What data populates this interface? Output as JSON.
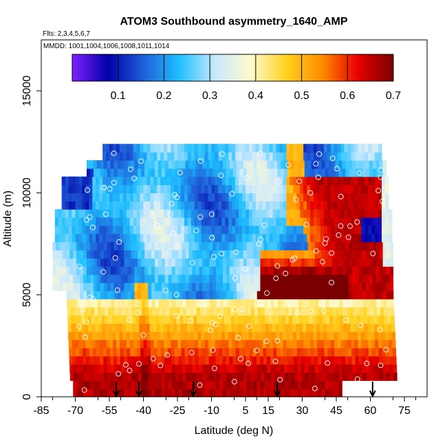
{
  "chart_data": {
    "type": "heatmap",
    "title": "ATOM3 Southbound asymmetry_1640_AMP",
    "subtitle_flights": "Flts: 2,3,4,5,6,7",
    "subtitle_dates": "MMDD: 1001,1004,1006,1008,1011,1014",
    "xlabel": "Latitude (deg N)",
    "ylabel": "Altitude (m)",
    "xlim": [
      -85,
      85
    ],
    "ylim": [
      0,
      17500
    ],
    "x_ticks": [
      -85,
      -70,
      -55,
      -40,
      -25,
      -10,
      5,
      15,
      30,
      45,
      60,
      75
    ],
    "y_ticks": [
      0,
      5000,
      10000,
      15000
    ],
    "colorbar": {
      "range": [
        0,
        0.7
      ],
      "ticks": [
        0.1,
        0.2,
        0.3,
        0.4,
        0.5,
        0.6,
        0.7
      ],
      "colors": [
        "#7f1fff",
        "#0000a8",
        "#1f5fd8",
        "#1fbfff",
        "#c8e8ff",
        "#fffacd",
        "#ffd21f",
        "#ff8c00",
        "#e80000",
        "#7a0000"
      ]
    },
    "profile_arrows_lat": [
      -52,
      -42,
      -18,
      19,
      61
    ],
    "grid": false,
    "legend": "colorbar-top"
  }
}
